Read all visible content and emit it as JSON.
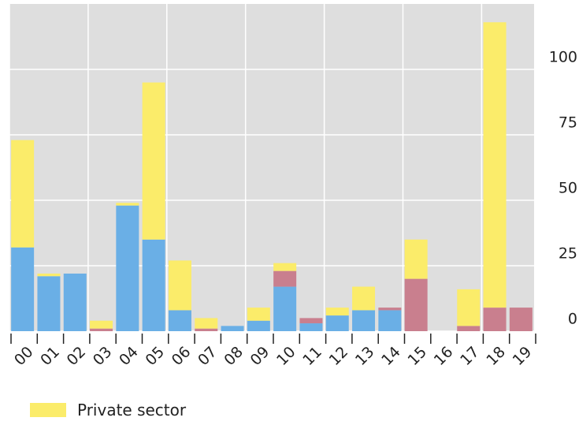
{
  "chart_data": {
    "type": "bar",
    "stacked": true,
    "categories": [
      "00",
      "01",
      "02",
      "03",
      "04",
      "05",
      "06",
      "07",
      "08",
      "09",
      "10",
      "11",
      "12",
      "13",
      "14",
      "15",
      "16",
      "17",
      "18",
      "19"
    ],
    "series": [
      {
        "color": "#6aafe6",
        "values": [
          32,
          21,
          22,
          0,
          48,
          35,
          8,
          0,
          2,
          4,
          17,
          3,
          6,
          8,
          8,
          0,
          0,
          0,
          0,
          0
        ]
      },
      {
        "color": "#c97f8e",
        "values": [
          0,
          0,
          0,
          1,
          0,
          0,
          0,
          1,
          0,
          0,
          6,
          2,
          0,
          0,
          1,
          20,
          0,
          2,
          9,
          9
        ]
      },
      {
        "name": "Private sector",
        "color": "#fbec6a",
        "values": [
          41,
          1,
          0,
          3,
          1,
          60,
          19,
          4,
          0,
          5,
          3,
          0,
          3,
          9,
          0,
          15,
          0,
          14,
          109,
          0
        ]
      }
    ],
    "yticks": [
      0,
      25,
      50,
      75,
      100
    ],
    "ylim": [
      -5,
      125
    ],
    "grid": true,
    "y_axis_position": "right",
    "legend_position": "bottom-left"
  }
}
